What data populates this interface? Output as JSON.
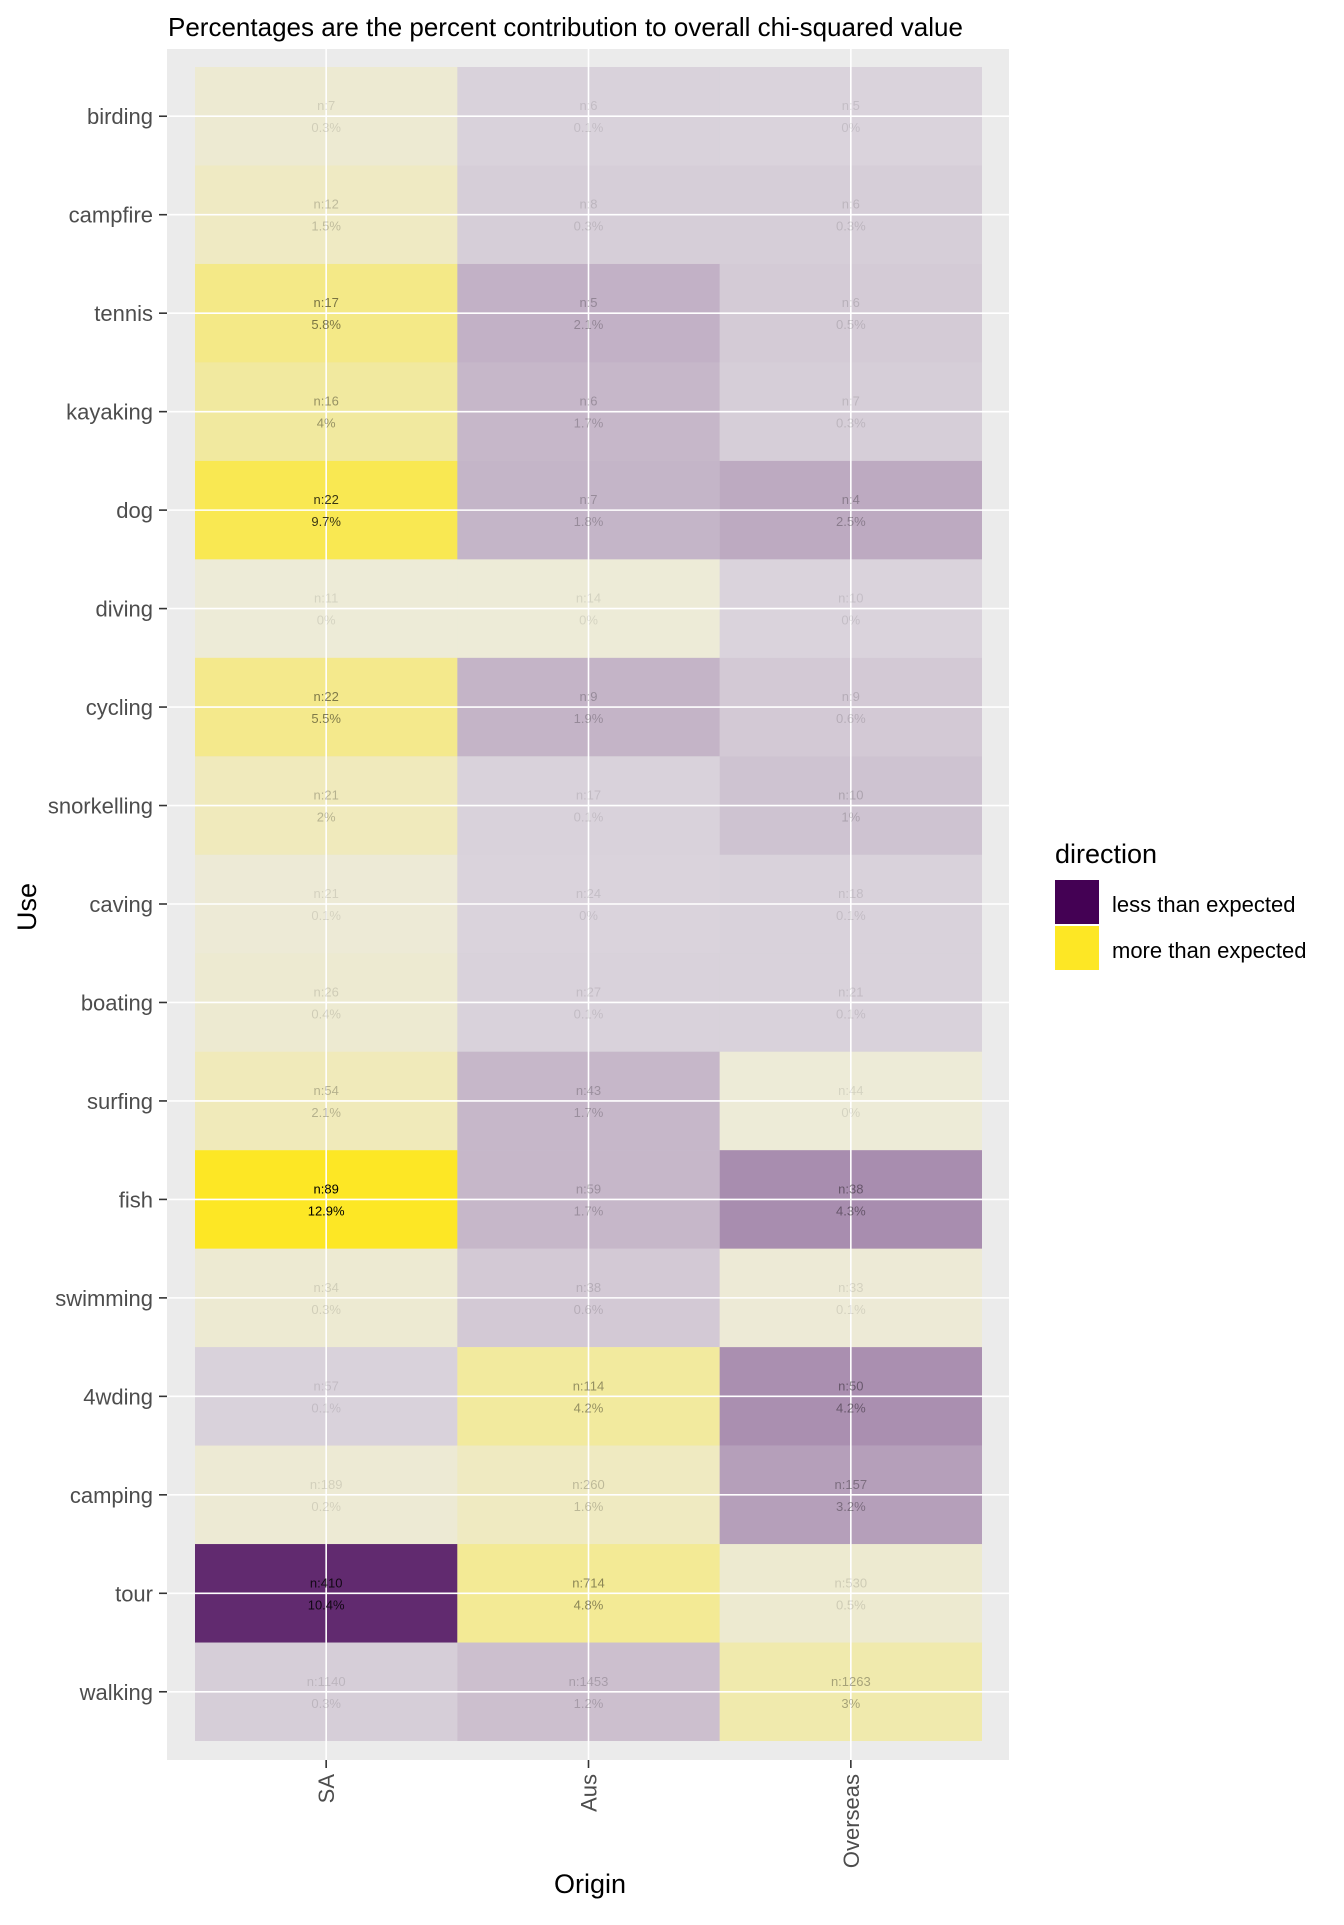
{
  "chart_data": {
    "type": "heatmap",
    "title": "Percentages are the percent contribution to overall chi-squared value",
    "xlabel": "Origin",
    "ylabel": "Use",
    "x_categories": [
      "SA",
      "Aus",
      "Overseas"
    ],
    "y_categories": [
      "birding",
      "campfire",
      "tennis",
      "kayaking",
      "dog",
      "diving",
      "cycling",
      "snorkelling",
      "caving",
      "boating",
      "surfing",
      "fish",
      "swimming",
      "4wding",
      "camping",
      "tour",
      "walking"
    ],
    "legend": {
      "title": "direction",
      "position": "right",
      "entries": [
        {
          "label": "less than expected",
          "color": "#440154"
        },
        {
          "label": "more than expected",
          "color": "#FDE725"
        }
      ]
    },
    "grid": true,
    "panel_background": "#EBEBEB",
    "cells": [
      {
        "use": "birding",
        "origin": "SA",
        "n": 7,
        "pct": "0.3%",
        "pct_value": 0.3,
        "direction": "more than expected"
      },
      {
        "use": "birding",
        "origin": "Aus",
        "n": 6,
        "pct": "0.1%",
        "pct_value": 0.1,
        "direction": "less than expected"
      },
      {
        "use": "birding",
        "origin": "Overseas",
        "n": 5,
        "pct": "0%",
        "pct_value": 0,
        "direction": "less than expected"
      },
      {
        "use": "campfire",
        "origin": "SA",
        "n": 12,
        "pct": "1.5%",
        "pct_value": 1.5,
        "direction": "more than expected"
      },
      {
        "use": "campfire",
        "origin": "Aus",
        "n": 8,
        "pct": "0.3%",
        "pct_value": 0.3,
        "direction": "less than expected"
      },
      {
        "use": "campfire",
        "origin": "Overseas",
        "n": 6,
        "pct": "0.3%",
        "pct_value": 0.3,
        "direction": "less than expected"
      },
      {
        "use": "tennis",
        "origin": "SA",
        "n": 17,
        "pct": "5.8%",
        "pct_value": 5.8,
        "direction": "more than expected"
      },
      {
        "use": "tennis",
        "origin": "Aus",
        "n": 5,
        "pct": "2.1%",
        "pct_value": 2.1,
        "direction": "less than expected"
      },
      {
        "use": "tennis",
        "origin": "Overseas",
        "n": 6,
        "pct": "0.5%",
        "pct_value": 0.5,
        "direction": "less than expected"
      },
      {
        "use": "kayaking",
        "origin": "SA",
        "n": 16,
        "pct": "4%",
        "pct_value": 4,
        "direction": "more than expected"
      },
      {
        "use": "kayaking",
        "origin": "Aus",
        "n": 6,
        "pct": "1.7%",
        "pct_value": 1.7,
        "direction": "less than expected"
      },
      {
        "use": "kayaking",
        "origin": "Overseas",
        "n": 7,
        "pct": "0.3%",
        "pct_value": 0.3,
        "direction": "less than expected"
      },
      {
        "use": "dog",
        "origin": "SA",
        "n": 22,
        "pct": "9.7%",
        "pct_value": 9.7,
        "direction": "more than expected"
      },
      {
        "use": "dog",
        "origin": "Aus",
        "n": 7,
        "pct": "1.8%",
        "pct_value": 1.8,
        "direction": "less than expected"
      },
      {
        "use": "dog",
        "origin": "Overseas",
        "n": 4,
        "pct": "2.5%",
        "pct_value": 2.5,
        "direction": "less than expected"
      },
      {
        "use": "diving",
        "origin": "SA",
        "n": 11,
        "pct": "0%",
        "pct_value": 0,
        "direction": "more than expected"
      },
      {
        "use": "diving",
        "origin": "Aus",
        "n": 14,
        "pct": "0%",
        "pct_value": 0,
        "direction": "more than expected"
      },
      {
        "use": "diving",
        "origin": "Overseas",
        "n": 10,
        "pct": "0%",
        "pct_value": 0,
        "direction": "less than expected"
      },
      {
        "use": "cycling",
        "origin": "SA",
        "n": 22,
        "pct": "5.5%",
        "pct_value": 5.5,
        "direction": "more than expected"
      },
      {
        "use": "cycling",
        "origin": "Aus",
        "n": 9,
        "pct": "1.9%",
        "pct_value": 1.9,
        "direction": "less than expected"
      },
      {
        "use": "cycling",
        "origin": "Overseas",
        "n": 9,
        "pct": "0.6%",
        "pct_value": 0.6,
        "direction": "less than expected"
      },
      {
        "use": "snorkelling",
        "origin": "SA",
        "n": 21,
        "pct": "2%",
        "pct_value": 2,
        "direction": "more than expected"
      },
      {
        "use": "snorkelling",
        "origin": "Aus",
        "n": 17,
        "pct": "0.1%",
        "pct_value": 0.1,
        "direction": "less than expected"
      },
      {
        "use": "snorkelling",
        "origin": "Overseas",
        "n": 10,
        "pct": "1%",
        "pct_value": 1,
        "direction": "less than expected"
      },
      {
        "use": "caving",
        "origin": "SA",
        "n": 21,
        "pct": "0.1%",
        "pct_value": 0.1,
        "direction": "more than expected"
      },
      {
        "use": "caving",
        "origin": "Aus",
        "n": 24,
        "pct": "0%",
        "pct_value": 0,
        "direction": "less than expected"
      },
      {
        "use": "caving",
        "origin": "Overseas",
        "n": 18,
        "pct": "0.1%",
        "pct_value": 0.1,
        "direction": "less than expected"
      },
      {
        "use": "boating",
        "origin": "SA",
        "n": 26,
        "pct": "0.4%",
        "pct_value": 0.4,
        "direction": "more than expected"
      },
      {
        "use": "boating",
        "origin": "Aus",
        "n": 27,
        "pct": "0.1%",
        "pct_value": 0.1,
        "direction": "less than expected"
      },
      {
        "use": "boating",
        "origin": "Overseas",
        "n": 21,
        "pct": "0.1%",
        "pct_value": 0.1,
        "direction": "less than expected"
      },
      {
        "use": "surfing",
        "origin": "SA",
        "n": 54,
        "pct": "2.1%",
        "pct_value": 2.1,
        "direction": "more than expected"
      },
      {
        "use": "surfing",
        "origin": "Aus",
        "n": 43,
        "pct": "1.7%",
        "pct_value": 1.7,
        "direction": "less than expected"
      },
      {
        "use": "surfing",
        "origin": "Overseas",
        "n": 44,
        "pct": "0%",
        "pct_value": 0,
        "direction": "more than expected"
      },
      {
        "use": "fish",
        "origin": "SA",
        "n": 89,
        "pct": "12.9%",
        "pct_value": 12.9,
        "direction": "more than expected"
      },
      {
        "use": "fish",
        "origin": "Aus",
        "n": 59,
        "pct": "1.7%",
        "pct_value": 1.7,
        "direction": "less than expected"
      },
      {
        "use": "fish",
        "origin": "Overseas",
        "n": 38,
        "pct": "4.3%",
        "pct_value": 4.3,
        "direction": "less than expected"
      },
      {
        "use": "swimming",
        "origin": "SA",
        "n": 34,
        "pct": "0.3%",
        "pct_value": 0.3,
        "direction": "more than expected"
      },
      {
        "use": "swimming",
        "origin": "Aus",
        "n": 38,
        "pct": "0.6%",
        "pct_value": 0.6,
        "direction": "less than expected"
      },
      {
        "use": "swimming",
        "origin": "Overseas",
        "n": 33,
        "pct": "0.1%",
        "pct_value": 0.1,
        "direction": "more than expected"
      },
      {
        "use": "4wding",
        "origin": "SA",
        "n": 57,
        "pct": "0.1%",
        "pct_value": 0.1,
        "direction": "less than expected"
      },
      {
        "use": "4wding",
        "origin": "Aus",
        "n": 114,
        "pct": "4.2%",
        "pct_value": 4.2,
        "direction": "more than expected"
      },
      {
        "use": "4wding",
        "origin": "Overseas",
        "n": 50,
        "pct": "4.2%",
        "pct_value": 4.2,
        "direction": "less than expected"
      },
      {
        "use": "camping",
        "origin": "SA",
        "n": 189,
        "pct": "0.2%",
        "pct_value": 0.2,
        "direction": "more than expected"
      },
      {
        "use": "camping",
        "origin": "Aus",
        "n": 260,
        "pct": "1.6%",
        "pct_value": 1.6,
        "direction": "more than expected"
      },
      {
        "use": "camping",
        "origin": "Overseas",
        "n": 157,
        "pct": "3.2%",
        "pct_value": 3.2,
        "direction": "less than expected"
      },
      {
        "use": "tour",
        "origin": "SA",
        "n": 410,
        "pct": "10.4%",
        "pct_value": 10.4,
        "direction": "less than expected"
      },
      {
        "use": "tour",
        "origin": "Aus",
        "n": 714,
        "pct": "4.8%",
        "pct_value": 4.8,
        "direction": "more than expected"
      },
      {
        "use": "tour",
        "origin": "Overseas",
        "n": 530,
        "pct": "0.5%",
        "pct_value": 0.5,
        "direction": "more than expected"
      },
      {
        "use": "walking",
        "origin": "SA",
        "n": 1140,
        "pct": "0.3%",
        "pct_value": 0.3,
        "direction": "less than expected"
      },
      {
        "use": "walking",
        "origin": "Aus",
        "n": 1453,
        "pct": "1.2%",
        "pct_value": 1.2,
        "direction": "less than expected"
      },
      {
        "use": "walking",
        "origin": "Overseas",
        "n": 1263,
        "pct": "3%",
        "pct_value": 3,
        "direction": "more than expected"
      }
    ]
  }
}
